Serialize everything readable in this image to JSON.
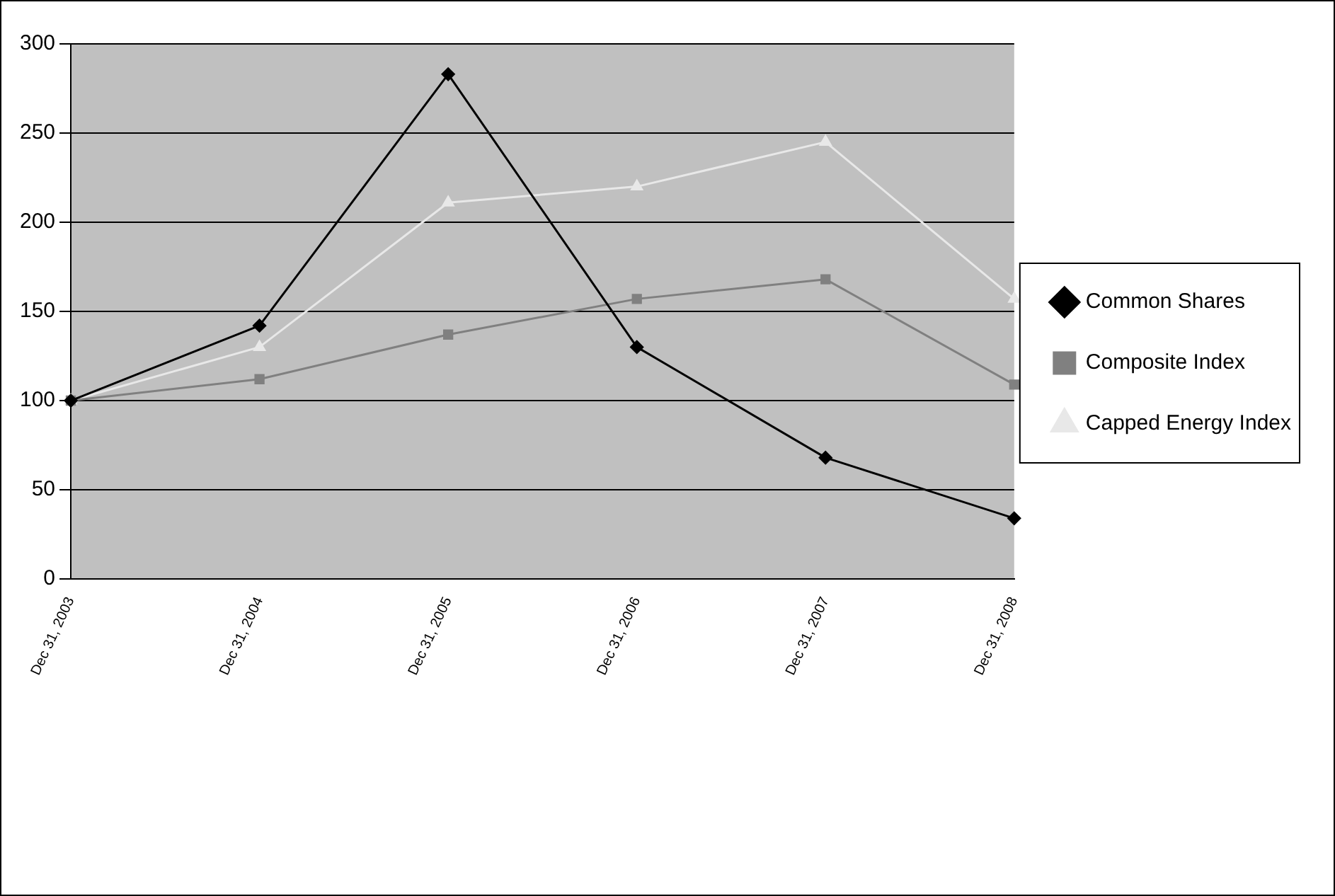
{
  "chart_data": {
    "type": "line",
    "categories": [
      "Dec 31, 2003",
      "Dec 31, 2004",
      "Dec 31, 2005",
      "Dec 31, 2006",
      "Dec 31, 2007",
      "Dec 31, 2008"
    ],
    "series": [
      {
        "name": "Common Shares",
        "color": "#000000",
        "marker": "diamond",
        "values": [
          100,
          142,
          283,
          130,
          68,
          34
        ]
      },
      {
        "name": "Composite Index",
        "color": "#808080",
        "marker": "square",
        "values": [
          100,
          112,
          137,
          157,
          168,
          109
        ]
      },
      {
        "name": "Capped Energy Index",
        "color": "#e8e8e8",
        "marker": "triangle",
        "values": [
          100,
          130,
          211,
          220,
          245,
          157
        ]
      }
    ],
    "ylim": [
      0,
      300
    ],
    "yticks": [
      0,
      50,
      100,
      150,
      200,
      250,
      300
    ],
    "grid": "y",
    "legend": "right",
    "line_style": "solid"
  }
}
